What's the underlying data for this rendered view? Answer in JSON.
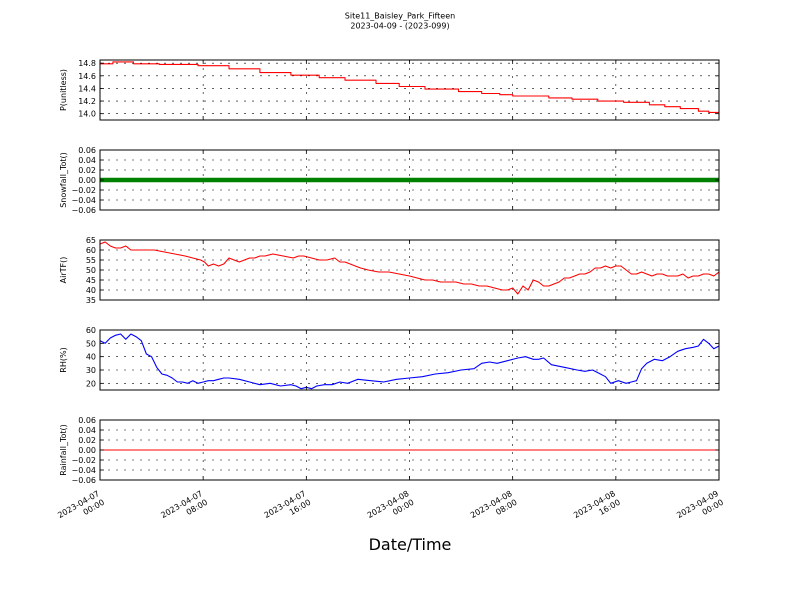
{
  "figure": {
    "title_line1": "Site11_Baisley_Park_Fifteen",
    "title_line2": "2023-04-09 - (2023-099)",
    "xlabel": "Date/Time"
  },
  "x_ticks": [
    {
      "l1": "2023-04-07",
      "l2": "00:00",
      "t": 0
    },
    {
      "l1": "2023-04-07",
      "l2": "08:00",
      "t": 8
    },
    {
      "l1": "2023-04-07",
      "l2": "16:00",
      "t": 16
    },
    {
      "l1": "2023-04-08",
      "l2": "00:00",
      "t": 24
    },
    {
      "l1": "2023-04-08",
      "l2": "08:00",
      "t": 32
    },
    {
      "l1": "2023-04-08",
      "l2": "16:00",
      "t": 40
    },
    {
      "l1": "2023-04-09",
      "l2": "00:00",
      "t": 48
    }
  ],
  "chart_data": [
    {
      "type": "line",
      "ylabel": "P(unitless)",
      "ylim": [
        13.9,
        14.85
      ],
      "yticks": [
        14.0,
        14.2,
        14.4,
        14.6,
        14.8
      ],
      "ytick_labels": [
        "14.0",
        "14.2",
        "14.4",
        "14.6",
        "14.8"
      ],
      "color": "#ff0000",
      "grid": true,
      "step": true,
      "x": [
        0,
        1,
        2.6,
        4.6,
        7.6,
        10,
        12.4,
        14.8,
        17,
        19,
        21.4,
        23.2,
        25.2,
        27.8,
        29.6,
        31,
        32,
        34.8,
        36.6,
        38.6,
        40.6,
        42.6,
        43.8,
        45,
        46.4,
        47.2,
        48
      ],
      "y": [
        14.79,
        14.82,
        14.79,
        14.78,
        14.76,
        14.71,
        14.65,
        14.61,
        14.57,
        14.53,
        14.48,
        14.43,
        14.39,
        14.35,
        14.32,
        14.3,
        14.28,
        14.25,
        14.23,
        14.2,
        14.18,
        14.14,
        14.11,
        14.08,
        14.04,
        14.02,
        14.0
      ]
    },
    {
      "type": "line",
      "ylabel": "Snowfall_Tot()",
      "ylim": [
        -0.06,
        0.06
      ],
      "yticks": [
        -0.06,
        -0.04,
        -0.02,
        0.0,
        0.02,
        0.04,
        0.06
      ],
      "ytick_labels": [
        "−0.06",
        "−0.04",
        "−0.02",
        "0.00",
        "0.02",
        "0.04",
        "0.06"
      ],
      "color": "#008000",
      "grid": true,
      "markers": true,
      "x": [
        0,
        48
      ],
      "y": [
        0.0,
        0.0
      ]
    },
    {
      "type": "line",
      "ylabel": "AirTF()",
      "ylim": [
        35,
        65
      ],
      "yticks": [
        35,
        40,
        45,
        50,
        55,
        60,
        65
      ],
      "ytick_labels": [
        "35",
        "40",
        "45",
        "50",
        "55",
        "60",
        "65"
      ],
      "color": "#ff0000",
      "grid": true,
      "x": [
        0,
        0.4,
        0.8,
        1.2,
        1.6,
        2.0,
        2.4,
        2.8,
        3.4,
        4.2,
        5.0,
        5.8,
        6.6,
        7.2,
        7.8,
        8.1,
        8.4,
        8.8,
        9.2,
        9.6,
        10.0,
        10.4,
        10.8,
        11.2,
        11.6,
        12.0,
        12.4,
        12.8,
        13.4,
        14.2,
        15.0,
        15.4,
        15.8,
        16.4,
        17.0,
        17.6,
        18.2,
        18.6,
        19.0,
        19.4,
        19.8,
        20.2,
        20.8,
        21.6,
        22.4,
        23.2,
        24.0,
        24.6,
        25.2,
        25.8,
        26.4,
        27.0,
        27.6,
        28.2,
        28.8,
        29.4,
        30.0,
        30.6,
        31.2,
        31.6,
        32.0,
        32.4,
        32.8,
        33.2,
        33.6,
        34.0,
        34.4,
        34.8,
        35.2,
        35.6,
        36.0,
        36.4,
        36.8,
        37.2,
        37.6,
        38.0,
        38.4,
        38.8,
        39.2,
        39.6,
        40.0,
        40.4,
        40.8,
        41.2,
        41.6,
        42.0,
        42.4,
        42.8,
        43.2,
        43.6,
        44.0,
        44.4,
        44.8,
        45.2,
        45.6,
        46.0,
        46.4,
        46.8,
        47.2,
        47.6,
        48.0
      ],
      "y": [
        63,
        64,
        62,
        61,
        61,
        62,
        60,
        60,
        60,
        60,
        59,
        58,
        57,
        56,
        55,
        54,
        52,
        53,
        52,
        53,
        56,
        55,
        54,
        55,
        56,
        56,
        57,
        57,
        58,
        57,
        56,
        57,
        57,
        56,
        55,
        55,
        56,
        54,
        54,
        53,
        52,
        51,
        50,
        49,
        49,
        48,
        47,
        46,
        45,
        45,
        44,
        44,
        44,
        43,
        43,
        42,
        42,
        41,
        40,
        40,
        41,
        38,
        42,
        40,
        45,
        44,
        42,
        42,
        43,
        44,
        46,
        46,
        47,
        48,
        48,
        49,
        51,
        51,
        52,
        51,
        52,
        52,
        50,
        48,
        48,
        49,
        48,
        47,
        48,
        48,
        47,
        47,
        47,
        48,
        46,
        47,
        47,
        48,
        48,
        47,
        49
      ]
    },
    {
      "type": "line",
      "ylabel": "RH(%)",
      "ylim": [
        15,
        60
      ],
      "yticks": [
        20,
        30,
        40,
        50,
        60
      ],
      "ytick_labels": [
        "20",
        "30",
        "40",
        "50",
        "60"
      ],
      "color": "#0000ff",
      "grid": true,
      "x": [
        0,
        0.4,
        0.8,
        1.2,
        1.6,
        2.0,
        2.4,
        2.8,
        3.2,
        3.6,
        4.0,
        4.4,
        4.8,
        5.2,
        5.6,
        6.0,
        6.4,
        6.8,
        7.2,
        7.6,
        8.0,
        8.4,
        8.8,
        9.2,
        9.6,
        10.0,
        10.8,
        11.6,
        12.4,
        13.2,
        14.0,
        14.8,
        15.2,
        15.6,
        16.0,
        16.4,
        16.8,
        17.4,
        18.0,
        18.6,
        19.2,
        20.0,
        21.0,
        22.0,
        23.0,
        24.0,
        25.0,
        26.0,
        27.0,
        28.0,
        29.0,
        29.6,
        30.2,
        30.8,
        31.6,
        32.4,
        33.0,
        33.6,
        34.0,
        34.4,
        35.0,
        36.0,
        37.0,
        37.6,
        38.2,
        38.8,
        39.2,
        39.6,
        40.2,
        40.8,
        41.2,
        41.6,
        42.0,
        42.4,
        43.0,
        43.6,
        44.2,
        44.8,
        45.4,
        46.0,
        46.4,
        46.8,
        47.2,
        47.6,
        48.0
      ],
      "y": [
        52,
        50,
        54,
        56,
        57,
        53,
        57,
        55,
        52,
        42,
        40,
        32,
        27,
        26,
        24,
        21,
        21,
        20,
        22,
        20,
        21,
        22,
        22,
        23,
        24,
        24,
        23,
        21,
        19,
        20,
        18,
        19,
        18,
        16,
        17,
        16,
        18,
        19,
        19,
        21,
        20,
        23,
        22,
        21,
        23,
        24,
        25,
        27,
        28,
        30,
        31,
        35,
        36,
        35,
        37,
        39,
        40,
        38,
        38,
        39,
        34,
        32,
        30,
        29,
        30,
        27,
        25,
        20,
        22,
        20,
        21,
        22,
        31,
        35,
        38,
        37,
        40,
        44,
        46,
        47,
        48,
        53,
        50,
        46,
        48
      ]
    },
    {
      "type": "line",
      "ylabel": "Rainfall_Tot()",
      "ylim": [
        -0.06,
        0.06
      ],
      "yticks": [
        -0.06,
        -0.04,
        -0.02,
        0.0,
        0.02,
        0.04,
        0.06
      ],
      "ytick_labels": [
        "−0.06",
        "−0.04",
        "−0.02",
        "0.00",
        "0.02",
        "0.04",
        "0.06"
      ],
      "color": "#ff0000",
      "grid": true,
      "x": [
        0,
        48
      ],
      "y": [
        0.0,
        0.0
      ]
    }
  ]
}
